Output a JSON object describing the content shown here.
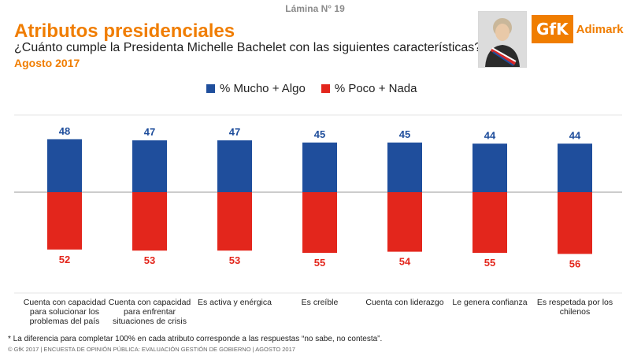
{
  "header": {
    "slide_number": "Lámina N° 19",
    "title": "Atributos presidenciales",
    "question": "¿Cuánto cumple la Presidenta Michelle Bachelet con las siguientes características?",
    "date": "Agosto 2017"
  },
  "logo": {
    "brand": "GfK",
    "name": "Adimark"
  },
  "colors": {
    "blue": "#1f4e9c",
    "red": "#e3261c",
    "orange": "#f07d00"
  },
  "chart_data": {
    "type": "bar",
    "categories": [
      "Cuenta con capacidad para solucionar los problemas del país",
      "Cuenta con capacidad para enfrentar situaciones de crisis",
      "Es activa y enérgica",
      "Es creíble",
      "Cuenta con liderazgo",
      "Le genera confianza",
      "Es respetada por los chilenos"
    ],
    "series": [
      {
        "name": "% Mucho + Algo",
        "values": [
          48,
          47,
          47,
          45,
          45,
          44,
          44
        ],
        "color": "#1f4e9c"
      },
      {
        "name": "% Poco + Nada",
        "values": [
          52,
          53,
          53,
          55,
          54,
          55,
          56
        ],
        "color": "#e3261c"
      }
    ],
    "layout": "diverging",
    "legend": "top"
  },
  "footer": {
    "note": "* La diferencia para completar 100% en cada  atributo corresponde a las respuestas “no sabe, no contesta”.",
    "copyright": "© GfK 2017 | ENCUESTA DE OPINIÓN PÚBLICA: EVALUACIÓN GESTIÓN DE GOBIERNO | AGOSTO 2017"
  }
}
